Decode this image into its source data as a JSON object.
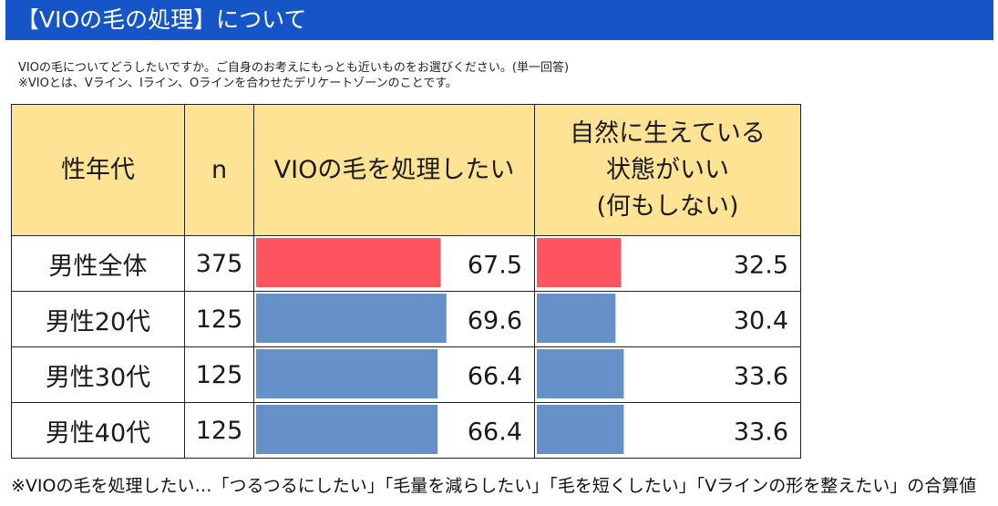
{
  "header": {
    "title": "【VIOの毛の処理】について"
  },
  "question": {
    "line1": "VIOの毛についてどうしたいですか。ご自身のお考えにもっとも近いものをお選びください。(単一回答)",
    "line2": "※VIOとは、Vライン、Iライン、Oラインを合わせたデリケートゾーンのことです。"
  },
  "footnote": "※VIOの毛を処理したい…「つるつるにしたい」「毛量を減らしたい」「毛を短くしたい」「Vラインの形を整えたい」の合算値",
  "colors": {
    "header_bg": "#1655c8",
    "col_header_bg": "#ffe394",
    "total_bar": "#fd5460",
    "age_bar": "#6690c8"
  },
  "chart_data": {
    "type": "table",
    "columns": [
      "性年代",
      "n",
      "VIOの毛を処理したい",
      "自然に生えている\n状態がいい\n(何もしない)"
    ],
    "col4_lines": [
      "自然に生えている",
      "状態がいい",
      "(何もしない)"
    ],
    "xlim": [
      0,
      100
    ],
    "rows": [
      {
        "label": "男性全体",
        "n": "375",
        "values": [
          67.5,
          32.5
        ],
        "values_text": [
          "67.5",
          "32.5"
        ],
        "group": "total"
      },
      {
        "label": "男性20代",
        "n": "125",
        "values": [
          69.6,
          30.4
        ],
        "values_text": [
          "69.6",
          "30.4"
        ],
        "group": "age"
      },
      {
        "label": "男性30代",
        "n": "125",
        "values": [
          66.4,
          33.6
        ],
        "values_text": [
          "66.4",
          "33.6"
        ],
        "group": "age"
      },
      {
        "label": "男性40代",
        "n": "125",
        "values": [
          66.4,
          33.6
        ],
        "values_text": [
          "66.4",
          "33.6"
        ],
        "group": "age"
      }
    ]
  }
}
